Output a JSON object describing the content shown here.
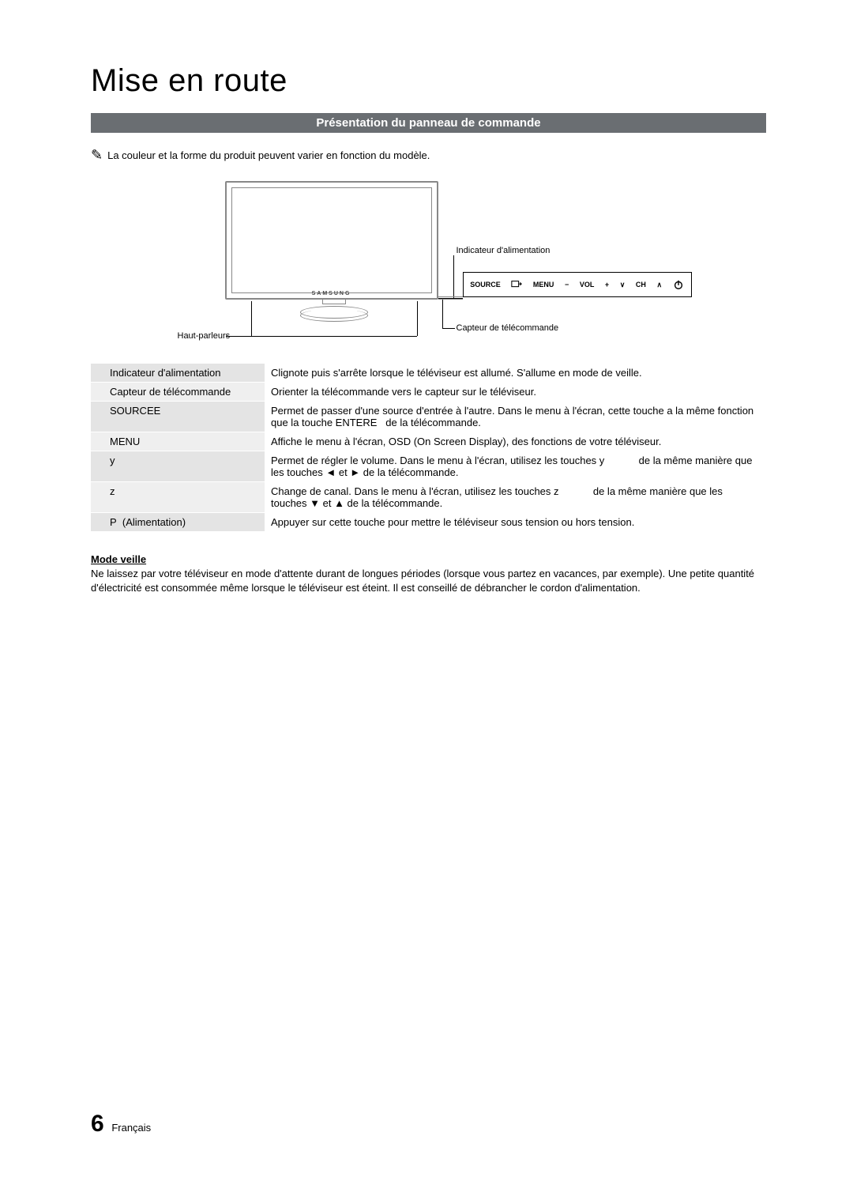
{
  "title": "Mise en route",
  "section_header": "Présentation du panneau de commande",
  "note_icon": "✎",
  "note_text": "La couleur et la forme du produit peuvent varier en fonction du modèle.",
  "diagram": {
    "brand": "SAMSUNG",
    "callouts": {
      "power_indicator": "Indicateur d'alimentation",
      "remote_sensor": "Capteur de télécommande",
      "speakers": "Haut-parleurs"
    },
    "panel": {
      "source": "SOURCE",
      "menu": "MENU",
      "vol_minus": "−",
      "vol_label": "VOL",
      "vol_plus": "+",
      "ch_down": "∨",
      "ch_label": "CH",
      "ch_up": "∧"
    }
  },
  "table": {
    "rows": [
      {
        "label": "Indicateur d'alimentation",
        "desc": "Clignote puis s'arrête lorsque le téléviseur est allumé. S'allume en mode de veille."
      },
      {
        "label": "Capteur de télécommande",
        "desc": "Orienter la télécommande vers le capteur sur le téléviseur."
      },
      {
        "label": "SOURCEE",
        "desc": "Permet de passer d'une source d'entrée à l'autre. Dans le menu à l'écran, cette touche a la même fonction que la touche ENTERE   de la télécommande."
      },
      {
        "label": "MENU",
        "desc": "Affiche le menu à l'écran, OSD (On Screen Display), des fonctions de votre téléviseur."
      },
      {
        "label": "y",
        "desc": "Permet de régler le volume. Dans le menu à l'écran, utilisez les touches y            de la même manière que les touches ◄ et ► de la télécommande."
      },
      {
        "label": "z",
        "desc": "Change de canal. Dans le menu à l'écran, utilisez les touches z            de la même manière que les touches ▼ et ▲ de la télécommande."
      },
      {
        "label": "P  (Alimentation)",
        "desc": "Appuyer sur cette touche pour mettre le téléviseur sous tension ou hors tension."
      }
    ]
  },
  "mode_veille": {
    "heading": "Mode veille",
    "text": "Ne laissez par votre téléviseur en mode d'attente durant de longues périodes (lorsque vous partez en vacances, par exemple). Une petite quantité d'électricité est consommée même lorsque le téléviseur est éteint. Il est conseillé de débrancher le cordon d'alimentation."
  },
  "footer": {
    "page_number": "6",
    "lang": "Français"
  },
  "colors": {
    "bar_bg": "#6a6e72",
    "row_a": "#e4e4e4",
    "row_b": "#efefef"
  }
}
